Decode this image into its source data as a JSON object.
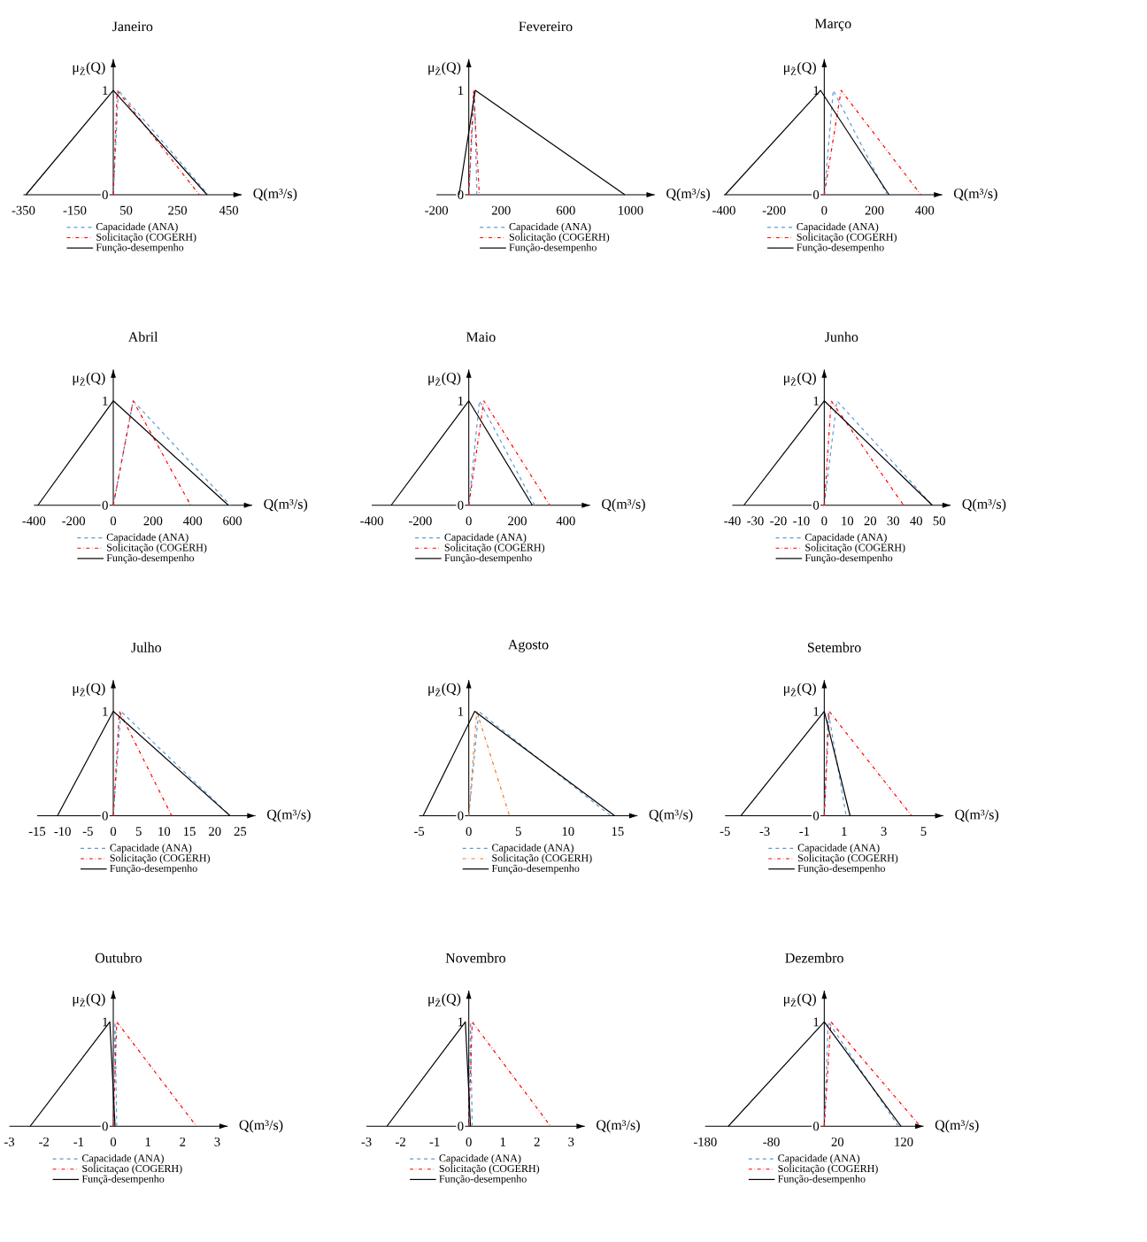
{
  "chart_data": [
    {
      "type": "line",
      "title": "Janeiro",
      "xlabel": "Q(m³/s)",
      "ylabel": "μ$_{Z̃}$(Q)",
      "xlim": [
        -350,
        500
      ],
      "ylim": [
        0,
        1.3
      ],
      "xticks": [
        -350,
        -150,
        50,
        250,
        450
      ],
      "yticks": [
        0,
        1
      ],
      "legend": "bottom",
      "series": [
        {
          "name": "Capacidade (ANA)",
          "color": "#5b9bd5",
          "line_style": "dashed",
          "x": [
            0,
            20,
            370
          ],
          "values": [
            0,
            1,
            0
          ]
        },
        {
          "name": "Solicitação (COGERH)",
          "color": "#ff0000",
          "line_style": "dashdot",
          "x": [
            0,
            15,
            335
          ],
          "values": [
            0,
            1,
            0
          ]
        },
        {
          "name": "Função-desempenho",
          "color": "#000000",
          "line_style": "solid",
          "x": [
            -340,
            0,
            365
          ],
          "values": [
            0,
            1,
            0
          ]
        }
      ]
    },
    {
      "type": "line",
      "title": "Fevereiro",
      "xlabel": "Q(m³/s)",
      "ylabel": "μ$_{Z̃}$(Q)",
      "xlim": [
        -200,
        1150
      ],
      "ylim": [
        0,
        1.3
      ],
      "xticks": [
        -200,
        200,
        600,
        1000
      ],
      "yticks": [
        0,
        1
      ],
      "legend": "bottom",
      "series": [
        {
          "name": "Capacidade (ANA)",
          "color": "#5b9bd5",
          "line_style": "dashed",
          "x": [
            0,
            35,
            50
          ],
          "values": [
            0,
            1,
            0
          ]
        },
        {
          "name": "Solicitação (COGERH)",
          "color": "#ff0000",
          "line_style": "dashdot",
          "x": [
            0,
            30,
            65
          ],
          "values": [
            0,
            1,
            0
          ]
        },
        {
          "name": "Função-desempenho",
          "color": "#000000",
          "line_style": "solid",
          "x": [
            -60,
            40,
            965
          ],
          "values": [
            0,
            1,
            0
          ]
        }
      ]
    },
    {
      "type": "line",
      "title": "Março",
      "xlabel": "Q(m³/s)",
      "ylabel": "μ$_{Z̃}$(Q)",
      "xlim": [
        -400,
        470
      ],
      "ylim": [
        0,
        1.3
      ],
      "xticks": [
        -400,
        -200,
        0,
        200,
        400
      ],
      "yticks": [
        0,
        1
      ],
      "legend": "bottom",
      "series": [
        {
          "name": "Capacidade (ANA)",
          "color": "#5b9bd5",
          "line_style": "dashed",
          "x": [
            0,
            36,
            250
          ],
          "values": [
            0,
            1,
            0
          ]
        },
        {
          "name": "Solicitação (COGERH)",
          "color": "#ff0000",
          "line_style": "dashdot",
          "x": [
            0,
            67,
            385
          ],
          "values": [
            0,
            1,
            0
          ]
        },
        {
          "name": "Função-desempenho",
          "color": "#000000",
          "line_style": "solid",
          "x": [
            -395,
            -15,
            258
          ],
          "values": [
            0,
            1,
            0
          ]
        }
      ]
    },
    {
      "type": "line",
      "title": "Abril",
      "xlabel": "Q(m³/s)",
      "ylabel": "μ$_{Z̃}$(Q)",
      "xlim": [
        -400,
        700
      ],
      "ylim": [
        0,
        1.3
      ],
      "xticks": [
        -400,
        -200,
        0,
        200,
        400,
        600
      ],
      "yticks": [
        0,
        1
      ],
      "legend": "bottom",
      "series": [
        {
          "name": "Capacidade (ANA)",
          "color": "#5b9bd5",
          "line_style": "dashed",
          "x": [
            0,
            100,
            590
          ],
          "values": [
            0,
            1,
            0
          ]
        },
        {
          "name": "Solicitação (COGERH)",
          "color": "#ff0000",
          "line_style": "dashdot",
          "x": [
            0,
            100,
            390
          ],
          "values": [
            0,
            1,
            0
          ]
        },
        {
          "name": "Função-desempenho",
          "color": "#000000",
          "line_style": "solid",
          "x": [
            -380,
            0,
            580
          ],
          "values": [
            0,
            1,
            0
          ]
        }
      ]
    },
    {
      "type": "line",
      "title": "Maio",
      "xlabel": "Q(m³/s)",
      "ylabel": "μ$_{Z̃}$(Q)",
      "xlim": [
        -400,
        500
      ],
      "ylim": [
        0,
        1.3
      ],
      "xticks": [
        -400,
        -200,
        0,
        200,
        400
      ],
      "yticks": [
        0,
        1
      ],
      "legend": "bottom",
      "series": [
        {
          "name": "Capacidade (ANA)",
          "color": "#5b9bd5",
          "line_style": "dashed",
          "x": [
            0,
            44,
            272
          ],
          "values": [
            0,
            1,
            0
          ]
        },
        {
          "name": "Solicitação (COGERH)",
          "color": "#ff0000",
          "line_style": "dashdot",
          "x": [
            0,
            62,
            334
          ],
          "values": [
            0,
            1,
            0
          ]
        },
        {
          "name": "Função-desempenho",
          "color": "#000000",
          "line_style": "solid",
          "x": [
            -320,
            0,
            262
          ],
          "values": [
            0,
            1,
            0
          ]
        }
      ]
    },
    {
      "type": "line",
      "title": "Junho",
      "xlabel": "Q(m³/s)",
      "ylabel": "μ$_{Z̃}$(Q)",
      "xlim": [
        -40,
        55
      ],
      "ylim": [
        0,
        1.3
      ],
      "xticks": [
        -40,
        -30,
        -20,
        -10,
        0,
        10,
        20,
        30,
        40,
        50
      ],
      "yticks": [
        0,
        1
      ],
      "legend": "bottom",
      "series": [
        {
          "name": "Capacidade (ANA)",
          "color": "#5b9bd5",
          "line_style": "dashed",
          "x": [
            0,
            5.5,
            47
          ],
          "values": [
            0,
            1,
            0
          ]
        },
        {
          "name": "Solicitação (COGERH)",
          "color": "#ff0000",
          "line_style": "dashdot",
          "x": [
            0,
            3,
            34.5
          ],
          "values": [
            0,
            1,
            0
          ]
        },
        {
          "name": "Função-desempenho",
          "color": "#000000",
          "line_style": "solid",
          "x": [
            -35,
            0,
            47
          ],
          "values": [
            0,
            1,
            0
          ]
        }
      ]
    },
    {
      "type": "line",
      "title": "Julho",
      "xlabel": "Q(m³/s)",
      "ylabel": "μ$_{Z̃}$(Q)",
      "xlim": [
        -15,
        28
      ],
      "ylim": [
        0,
        1.3
      ],
      "xticks": [
        -15,
        -10,
        -5,
        0,
        5,
        10,
        15,
        20,
        25
      ],
      "yticks": [
        0,
        1
      ],
      "legend": "bottom",
      "series": [
        {
          "name": "Capacidade (ANA)",
          "color": "#5b9bd5",
          "line_style": "dashed",
          "x": [
            0,
            1.5,
            23
          ],
          "values": [
            0,
            1,
            0
          ]
        },
        {
          "name": "Solicitação (COGERH)",
          "color": "#ff0000",
          "line_style": "dashdot",
          "x": [
            0,
            1.2,
            11.5
          ],
          "values": [
            0,
            1,
            0
          ]
        },
        {
          "name": "Função-desempenho",
          "color": "#000000",
          "line_style": "solid",
          "x": [
            -11,
            0,
            23
          ],
          "values": [
            0,
            1,
            0
          ]
        }
      ]
    },
    {
      "type": "line",
      "title": "Agosto",
      "xlabel": "Q(m³/s)",
      "ylabel": "μ$_{Z̃}$(Q)",
      "xlim": [
        -5,
        17
      ],
      "ylim": [
        0,
        1.3
      ],
      "xticks": [
        -5,
        0,
        5,
        10,
        15
      ],
      "yticks": [
        0,
        1
      ],
      "legend": "bottom",
      "series": [
        {
          "name": "Capacidade (ANA)",
          "color": "#5b9bd5",
          "line_style": "dashed",
          "x": [
            0,
            1,
            14.3
          ],
          "values": [
            0,
            1,
            0
          ]
        },
        {
          "name": "Solicitação (COGERH)",
          "color": "#ed7d31",
          "line_style": "dashdot",
          "x": [
            0,
            0.8,
            4.1
          ],
          "values": [
            0,
            1,
            0
          ]
        },
        {
          "name": "Função-desempenho",
          "color": "#000000",
          "line_style": "solid",
          "x": [
            -4.6,
            0.6,
            14.7
          ],
          "values": [
            0,
            1,
            0
          ]
        }
      ]
    },
    {
      "type": "line",
      "title": "Setembro",
      "xlabel": "Q(m³/s)",
      "ylabel": "μ$_{Z̃}$(Q)",
      "xlim": [
        -5,
        6
      ],
      "ylim": [
        0,
        1.3
      ],
      "xticks": [
        -5,
        -3,
        -1,
        1,
        3,
        5
      ],
      "yticks": [
        0,
        1
      ],
      "legend": "bottom",
      "series": [
        {
          "name": "Capacidade (ANA)",
          "color": "#5b9bd5",
          "line_style": "dashed",
          "x": [
            0,
            0.2,
            1.1
          ],
          "values": [
            0,
            1,
            0
          ]
        },
        {
          "name": "Solicitação (COGERH)",
          "color": "#ff0000",
          "line_style": "dashdot",
          "x": [
            0,
            0.25,
            4.4
          ],
          "values": [
            0,
            1,
            0
          ]
        },
        {
          "name": "Função-desempenho",
          "color": "#000000",
          "line_style": "solid",
          "x": [
            -4.2,
            0,
            1.3
          ],
          "values": [
            0,
            1,
            0
          ]
        }
      ]
    },
    {
      "type": "line",
      "title": "Outubro",
      "xlabel": "Q(m³/s)",
      "ylabel": "μ$_{Z̃}$(Q)",
      "xlim": [
        -3,
        3.3
      ],
      "ylim": [
        0,
        1.3
      ],
      "xticks": [
        -3,
        -2,
        -1,
        0,
        1,
        2,
        3
      ],
      "yticks": [
        0,
        1
      ],
      "legend": "bottom",
      "series": [
        {
          "name": "Capacidade (ANA)",
          "color": "#5b9bd5",
          "line_style": "dashed",
          "x": [
            0,
            0.05,
            0.1
          ],
          "values": [
            0,
            1,
            0
          ]
        },
        {
          "name": "Solicitaçao (COGERH)",
          "color": "#ff0000",
          "line_style": "dashdot",
          "x": [
            0,
            0.1,
            2.4
          ],
          "values": [
            0,
            1,
            0
          ]
        },
        {
          "name": "Funçã-desempenho",
          "color": "#000000",
          "line_style": "solid",
          "x": [
            -2.4,
            -0.1,
            0.05
          ],
          "values": [
            0,
            1,
            0
          ]
        }
      ]
    },
    {
      "type": "line",
      "title": "Novembro",
      "xlabel": "Q(m³/s)",
      "ylabel": "μ$_{Z̃}$(Q)",
      "xlim": [
        -3,
        3.4
      ],
      "ylim": [
        0,
        1.3
      ],
      "xticks": [
        -3,
        -2,
        -1,
        0,
        1,
        2,
        3
      ],
      "yticks": [
        0,
        1
      ],
      "legend": "bottom",
      "series": [
        {
          "name": "Capacidade (ANA)",
          "color": "#5b9bd5",
          "line_style": "dashed",
          "x": [
            0,
            0.05,
            0.1
          ],
          "values": [
            0,
            1,
            0
          ]
        },
        {
          "name": "Solicitação (COGERH)",
          "color": "#ff0000",
          "line_style": "dashdot",
          "x": [
            0,
            0.1,
            2.4
          ],
          "values": [
            0,
            1,
            0
          ]
        },
        {
          "name": "Função-desempenho",
          "color": "#000000",
          "line_style": "solid",
          "x": [
            -2.4,
            -0.1,
            0.05
          ],
          "values": [
            0,
            1,
            0
          ]
        }
      ]
    },
    {
      "type": "line",
      "title": "Dezembro",
      "xlabel": "Q(m³/s)",
      "ylabel": "μ$_{Z̃}$(Q)",
      "xlim": [
        -180,
        150
      ],
      "ylim": [
        0,
        1.3
      ],
      "xticks": [
        -180,
        -80,
        20,
        120
      ],
      "yticks": [
        0,
        1
      ],
      "legend": "bottom",
      "series": [
        {
          "name": "Capacidade (ANA)",
          "color": "#5b9bd5",
          "line_style": "dashed",
          "x": [
            0,
            6,
            112
          ],
          "values": [
            0,
            1,
            0
          ]
        },
        {
          "name": "Solicitação (COGERH)",
          "color": "#ff0000",
          "line_style": "dashdot",
          "x": [
            0,
            10,
            145
          ],
          "values": [
            0,
            1,
            0
          ]
        },
        {
          "name": "Função-desempenho",
          "color": "#000000",
          "line_style": "solid",
          "x": [
            -145,
            0,
            116
          ],
          "values": [
            0,
            1,
            0
          ]
        }
      ]
    }
  ]
}
